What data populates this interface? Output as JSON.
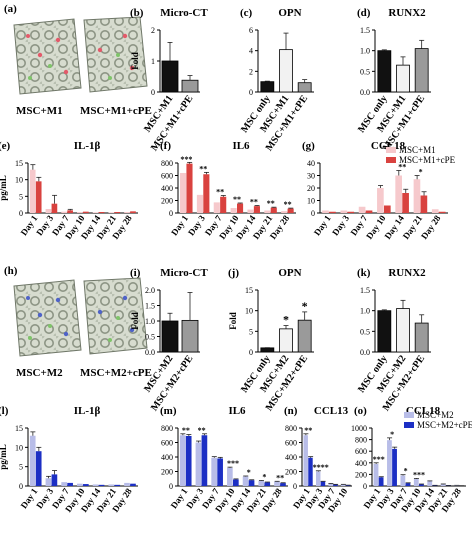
{
  "figure": {
    "panel_a": {
      "letter": "(a)",
      "labels": [
        "MSC+M1",
        "MSC+M1+cPE"
      ]
    },
    "panel_h": {
      "letter": "(h)",
      "labels": [
        "MSC+M2",
        "MSC+M2+cPE"
      ]
    }
  },
  "chart_data": [
    {
      "id": "b",
      "letter": "(b)",
      "type": "bar",
      "title": "Micro-CT",
      "ylabel": "Fold",
      "categories": [
        "MSC+M1",
        "MSC+M1+cPE"
      ],
      "values": [
        1.0,
        0.38
      ],
      "errors": [
        0.6,
        0.15
      ],
      "colors": [
        "#111111",
        "#9a9a9a"
      ],
      "ylim": [
        0,
        2
      ],
      "yticks": [
        0,
        1,
        2
      ]
    },
    {
      "id": "c",
      "letter": "(c)",
      "type": "bar",
      "title": "OPN",
      "ylabel": "",
      "categories": [
        "MSC only",
        "MSC+M1",
        "MSC+M1+cPE"
      ],
      "values": [
        1.0,
        4.1,
        0.9
      ],
      "errors": [
        0.05,
        1.6,
        0.3
      ],
      "colors": [
        "#111111",
        "#f2f2f2",
        "#9a9a9a"
      ],
      "ylim": [
        0,
        6
      ],
      "yticks": [
        0,
        2,
        4,
        6
      ]
    },
    {
      "id": "d",
      "letter": "(d)",
      "type": "bar",
      "title": "RUNX2",
      "ylabel": "",
      "categories": [
        "MSC only",
        "MSC+M1",
        "MSC+M1+cPE"
      ],
      "values": [
        1.0,
        0.65,
        1.05
      ],
      "errors": [
        0.02,
        0.2,
        0.2
      ],
      "colors": [
        "#111111",
        "#f2f2f2",
        "#9a9a9a"
      ],
      "ylim": [
        0,
        1.5
      ],
      "yticks": [
        0.0,
        0.5,
        1.0,
        1.5
      ],
      "tick_decimals": 1
    },
    {
      "id": "e",
      "letter": "(e)",
      "type": "bar",
      "title": "IL-1β",
      "ylabel": "pg/mL",
      "categories": [
        "Day 1",
        "Day 3",
        "Day 7",
        "Day 10",
        "Day 14",
        "Day 21",
        "Day 28"
      ],
      "series": [
        {
          "values": [
            13,
            1.2,
            0.4,
            0.3,
            0.2,
            0.2,
            0.3
          ],
          "errors": [
            1.5,
            0,
            0,
            0,
            0,
            0,
            0
          ],
          "color": "#f6c9cc"
        },
        {
          "values": [
            9.5,
            2.8,
            0.8,
            0.4,
            0.3,
            0.3,
            0.5
          ],
          "errors": [
            1.2,
            2.5,
            0.3,
            0,
            0,
            0,
            0
          ],
          "color": "#d9423f"
        }
      ],
      "ylim": [
        0,
        15
      ],
      "yticks": [
        0,
        5,
        10,
        15
      ]
    },
    {
      "id": "f",
      "letter": "(f)",
      "type": "bar",
      "title": "IL6",
      "ylabel": "",
      "categories": [
        "Day 1",
        "Day 3",
        "Day 7",
        "Day 10",
        "Day 14",
        "Day 21",
        "Day 28"
      ],
      "series": [
        {
          "values": [
            640,
            290,
            170,
            80,
            55,
            40,
            30
          ],
          "errors": [
            0,
            0,
            0,
            0,
            0,
            0,
            0
          ],
          "color": "#f6c9cc"
        },
        {
          "values": [
            790,
            620,
            260,
            150,
            110,
            85,
            70
          ],
          "errors": [
            20,
            30,
            20,
            10,
            10,
            8,
            8
          ],
          "color": "#d9423f"
        }
      ],
      "sig": [
        "***",
        "**",
        "**",
        "**",
        "**",
        "**",
        "**"
      ],
      "ylim": [
        0,
        800
      ],
      "yticks": [
        0,
        200,
        400,
        600,
        800
      ]
    },
    {
      "id": "g",
      "letter": "(g)",
      "type": "bar",
      "title": "CCL18",
      "ylabel": "",
      "categories": [
        "Day 1",
        "Day 3",
        "Day 7",
        "Day 10",
        "Day 14",
        "Day 21",
        "Day 28"
      ],
      "series": [
        {
          "name": "MSC+M1",
          "values": [
            2,
            2,
            5,
            20,
            30,
            27,
            3
          ],
          "errors": [
            0,
            0,
            0,
            2,
            4,
            3,
            0
          ],
          "color": "#f6c9cc"
        },
        {
          "name": "MSC+M1+cPE",
          "values": [
            1,
            1,
            2,
            6,
            16,
            14,
            1
          ],
          "errors": [
            0,
            0,
            0,
            0,
            3,
            3,
            0
          ],
          "color": "#d9423f"
        }
      ],
      "sig": [
        "",
        "",
        "",
        "",
        "**",
        "*",
        ""
      ],
      "legend": "top-right",
      "ylim": [
        0,
        40
      ],
      "yticks": [
        0,
        10,
        20,
        30,
        40
      ]
    },
    {
      "id": "i",
      "letter": "(i)",
      "type": "bar",
      "title": "Micro-CT",
      "ylabel": "Fold",
      "categories": [
        "MSC+M2",
        "MSC+M2+cPE"
      ],
      "values": [
        1.0,
        1.02
      ],
      "errors": [
        0.25,
        0.9
      ],
      "colors": [
        "#111111",
        "#9a9a9a"
      ],
      "ylim": [
        0,
        2.0
      ],
      "yticks": [
        0.0,
        0.5,
        1.0,
        1.5,
        2.0
      ],
      "tick_decimals": 1
    },
    {
      "id": "j",
      "letter": "(j)",
      "type": "bar",
      "title": "OPN",
      "ylabel": "Fold",
      "categories": [
        "MSC only",
        "MSC+M2",
        "MSC+M2+cPE"
      ],
      "values": [
        1.0,
        5.6,
        7.7
      ],
      "errors": [
        0.05,
        0.8,
        2.0
      ],
      "colors": [
        "#111111",
        "#f2f2f2",
        "#9a9a9a"
      ],
      "sig": [
        "",
        "*",
        "*"
      ],
      "ylim": [
        0,
        15
      ],
      "yticks": [
        0,
        5,
        10,
        15
      ]
    },
    {
      "id": "k",
      "letter": "(k)",
      "type": "bar",
      "title": "RUNX2",
      "ylabel": "",
      "categories": [
        "MSC only",
        "MSC+M2",
        "MSC+M2+cPE"
      ],
      "values": [
        1.0,
        1.05,
        0.7
      ],
      "errors": [
        0.02,
        0.2,
        0.2
      ],
      "colors": [
        "#111111",
        "#f2f2f2",
        "#9a9a9a"
      ],
      "ylim": [
        0,
        1.5
      ],
      "yticks": [
        0.0,
        0.5,
        1.0,
        1.5
      ],
      "tick_decimals": 1
    },
    {
      "id": "l",
      "letter": "(l)",
      "type": "bar",
      "title": "IL-1β",
      "ylabel": "pg/mL",
      "categories": [
        "Day 1",
        "Day 3",
        "Day 7",
        "Day 10",
        "Day 14",
        "Day 21",
        "Day 28"
      ],
      "series": [
        {
          "values": [
            13,
            2,
            1,
            0.6,
            0.4,
            0.4,
            0.8
          ],
          "errors": [
            1,
            0.5,
            0,
            0,
            0,
            0,
            0
          ],
          "color": "#b8bde8"
        },
        {
          "values": [
            9,
            3,
            0.8,
            0.5,
            0.3,
            0.3,
            0.6
          ],
          "errors": [
            1,
            1,
            0,
            0,
            0,
            0,
            0
          ],
          "color": "#1c2fc4"
        }
      ],
      "ylim": [
        0,
        15
      ],
      "yticks": [
        0,
        5,
        10,
        15
      ]
    },
    {
      "id": "m",
      "letter": "(m)",
      "type": "bar",
      "title": "IL6",
      "ylabel": "",
      "categories": [
        "Day 1",
        "Day 3",
        "Day 7",
        "Day 10",
        "Day 14",
        "Day 21",
        "Day 28"
      ],
      "series": [
        {
          "values": [
            700,
            600,
            390,
            250,
            130,
            70,
            60
          ],
          "errors": [
            20,
            20,
            15,
            10,
            8,
            6,
            5
          ],
          "color": "#b8bde8"
        },
        {
          "values": [
            690,
            700,
            380,
            90,
            80,
            50,
            40
          ],
          "errors": [
            20,
            20,
            15,
            8,
            6,
            5,
            5
          ],
          "color": "#1c2fc4"
        }
      ],
      "sig": [
        "**",
        "**",
        "",
        "***",
        "*",
        "*",
        "**"
      ],
      "ylim": [
        0,
        800
      ],
      "yticks": [
        0,
        200,
        400,
        600,
        800
      ]
    },
    {
      "id": "n",
      "letter": "(n)",
      "type": "bar",
      "title": "CCL13",
      "ylabel": "",
      "categories": [
        "Day 1",
        "Day 3",
        "Day 7",
        "Day 10"
      ],
      "series": [
        {
          "values": [
            700,
            200,
            30,
            20
          ],
          "errors": [
            20,
            10,
            5,
            3
          ],
          "color": "#b8bde8"
        },
        {
          "values": [
            390,
            60,
            20,
            10
          ],
          "errors": [
            15,
            5,
            3,
            2
          ],
          "color": "#1c2fc4"
        }
      ],
      "sig": [
        "**",
        "****",
        "",
        ""
      ],
      "ylim": [
        0,
        800
      ],
      "yticks": [
        0,
        200,
        400,
        600,
        800
      ]
    },
    {
      "id": "o",
      "letter": "(o)",
      "type": "bar",
      "title": "CCL18",
      "ylabel": "",
      "categories": [
        "Day 1",
        "Day 3",
        "Day 7",
        "Day 10",
        "Day 14",
        "Day 21",
        "Day 28"
      ],
      "series": [
        {
          "name": "MSC+M2",
          "values": [
            380,
            790,
            180,
            120,
            80,
            30,
            10
          ],
          "errors": [
            20,
            40,
            15,
            10,
            8,
            5,
            2
          ],
          "color": "#b8bde8"
        },
        {
          "name": "MSC+M2+cPE",
          "values": [
            150,
            640,
            50,
            30,
            10,
            8,
            5
          ],
          "errors": [
            10,
            30,
            5,
            4,
            2,
            2,
            1
          ],
          "color": "#1c2fc4"
        }
      ],
      "sig": [
        "***",
        "*",
        "*",
        "***",
        "",
        "",
        ""
      ],
      "legend": "top-right",
      "ylim": [
        0,
        1000
      ],
      "yticks": [
        0,
        200,
        400,
        600,
        800,
        1000
      ]
    }
  ]
}
